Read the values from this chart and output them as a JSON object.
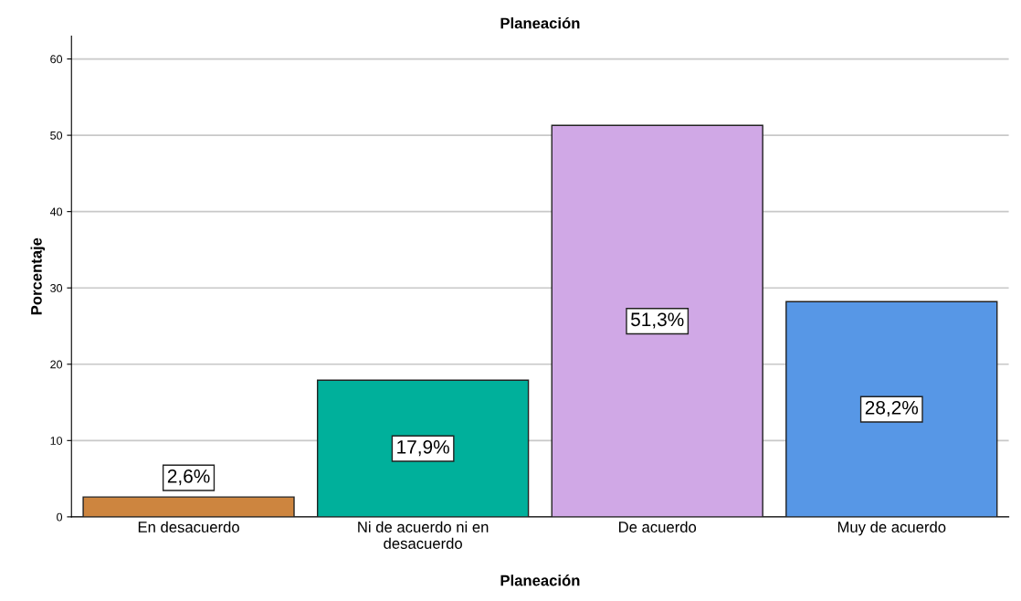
{
  "chart_data": {
    "type": "bar",
    "title": "Planeación",
    "xlabel": "Planeación",
    "ylabel": "Porcentaje",
    "categories": [
      "En desacuerdo",
      "Ni de acuerdo ni en desacuerdo",
      "De acuerdo",
      "Muy de acuerdo"
    ],
    "values": [
      2.6,
      17.9,
      51.3,
      28.2
    ],
    "value_labels": [
      "2,6%",
      "17,9%",
      "51,3%",
      "28,2%"
    ],
    "colors": [
      "#cd853f",
      "#00b09b",
      "#d0a8e6",
      "#5797e6"
    ],
    "ylim": [
      0,
      63
    ],
    "yticks": [
      0,
      10,
      20,
      30,
      40,
      50,
      60
    ],
    "grid": "y"
  }
}
